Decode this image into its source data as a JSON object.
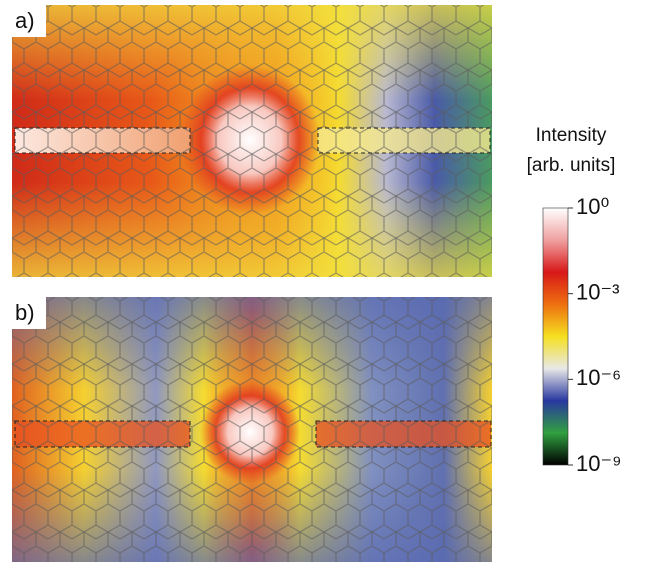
{
  "chart_data": {
    "type": "heatmap",
    "panels": [
      {
        "label": "a)"
      },
      {
        "label": "b)"
      }
    ],
    "colorbar": {
      "title": "Intensity",
      "subtitle": "[arb. units]",
      "log": true,
      "clim": [
        1e-09,
        1
      ],
      "ticks": [
        {
          "value": 1,
          "label": "10⁰"
        },
        {
          "value": 0.001,
          "label": "10⁻³"
        },
        {
          "value": 1e-06,
          "label": "10⁻⁶"
        },
        {
          "value": 1e-09,
          "label": "10⁻⁹"
        }
      ],
      "colors": [
        "#ffffff",
        "#f0a0a0",
        "#d81818",
        "#ee7010",
        "#f5e020",
        "#e8e8e8",
        "#2838a0",
        "#30a040",
        "#000000"
      ]
    }
  }
}
